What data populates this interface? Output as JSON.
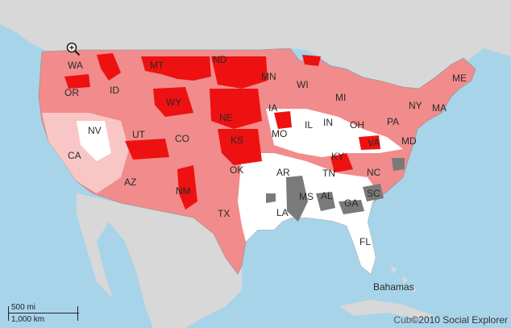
{
  "map": {
    "colors": {
      "ocean": "#a8d4ea",
      "land_foreign": "#d8d8d8",
      "us_base_pink": "#f28b8b",
      "light_pink": "#f9c6c6",
      "red": "#ee1111",
      "white": "#ffffff",
      "gray": "#7a7a7a",
      "border": "#999999"
    },
    "state_labels": [
      "WA",
      "OR",
      "MT",
      "ND",
      "MN",
      "WI",
      "MI",
      "ME",
      "ID",
      "WY",
      "NY",
      "MA",
      "IA",
      "NE",
      "IL",
      "IN",
      "OH",
      "PA",
      "NV",
      "CA",
      "UT",
      "CO",
      "MO",
      "KS",
      "KY",
      "MD",
      "VA",
      "AR",
      "TN",
      "NC",
      "OK",
      "AZ",
      "NM",
      "SC",
      "MS",
      "AL",
      "GA",
      "TX",
      "LA",
      "FL"
    ],
    "place_labels": [
      "Bahamas"
    ],
    "scale": {
      "miles": "500 mi",
      "km": "1,000 km"
    },
    "credit": {
      "left": "Cub",
      "right": "©2010 Social Explorer"
    },
    "zoom_icon": "zoom-in-magnifier-icon"
  }
}
